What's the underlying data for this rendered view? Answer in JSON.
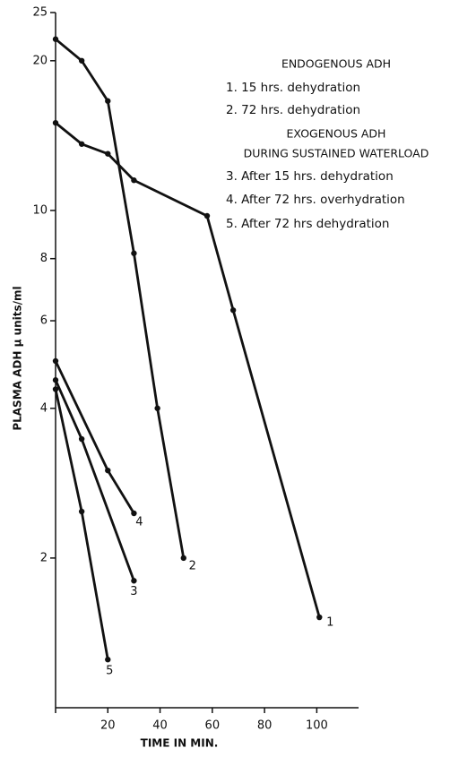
{
  "chart_data": {
    "type": "line",
    "x_label": "TIME IN MIN.",
    "y_label": "PLASMA ADH µ units/ml",
    "log_y": true,
    "xlim": [
      0,
      116
    ],
    "xticks": [
      0,
      20,
      40,
      60,
      80,
      100
    ],
    "ylim": [
      1,
      25
    ],
    "yticks": [
      2,
      4,
      6,
      8,
      10,
      20,
      25
    ],
    "legend_headers": [
      "ENDOGENOUS ADH",
      "EXOGENOUS ADH",
      "DURING SUSTAINED WATERLOAD"
    ],
    "series": [
      {
        "name": "1. 15 hrs. dehydration",
        "label": "1",
        "color": "#111111",
        "x": [
          0,
          10,
          20,
          30,
          58,
          68,
          101
        ],
        "values": [
          15,
          13.6,
          13,
          11.5,
          9.75,
          6.3,
          1.52
        ]
      },
      {
        "name": "2. 72 hrs. dehydration",
        "label": "2",
        "color": "#111111",
        "x": [
          0,
          10,
          20,
          30,
          39,
          49
        ],
        "values": [
          22.1,
          20,
          16.6,
          8.2,
          4,
          2
        ]
      },
      {
        "name": "3. After 15 hrs. dehydration",
        "label": "3",
        "color": "#111111",
        "x": [
          0,
          10,
          30
        ],
        "values": [
          4.56,
          3.47,
          1.8
        ]
      },
      {
        "name": "4. After 72 hrs. overhydration",
        "label": "4",
        "color": "#111111",
        "x": [
          0,
          20,
          30
        ],
        "values": [
          4.98,
          3.0,
          2.46
        ]
      },
      {
        "name": "5. After 72 hrs dehydration",
        "label": "5",
        "color": "#111111",
        "x": [
          0,
          10,
          20
        ],
        "values": [
          4.37,
          2.48,
          1.25
        ]
      }
    ]
  }
}
